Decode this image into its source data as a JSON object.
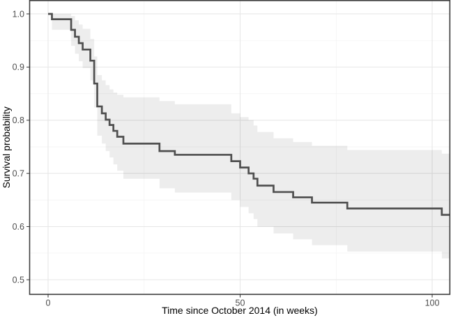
{
  "figure": {
    "background": "#ffffff",
    "colors": {
      "curve": "#4f4f4f",
      "ribbon": "rgba(0,0,0,0.072)",
      "panel_border": "#3f3f3f",
      "grid_major": "#e7e7e7",
      "grid_minor": "#f2f2f2",
      "tick_mark": "#333333",
      "tick_text": "#4d4d4d",
      "title_text": "#000000"
    }
  },
  "chart_data": {
    "type": "line",
    "subtype": "kaplan-meier-step-with-confidence-band",
    "title": "",
    "xlabel": "Time since October 2014 (in weeks)",
    "ylabel": "Survival probability",
    "xlim": [
      -4.81,
      104.59
    ],
    "ylim": [
      0.4725,
      1.0251
    ],
    "x_ticks": [
      0,
      50,
      100
    ],
    "x_tick_labels": [
      "0",
      "50",
      "100"
    ],
    "x_minor_ticks": [
      25,
      75
    ],
    "y_ticks": [
      1.0,
      0.9,
      0.8,
      0.7,
      0.6,
      0.5
    ],
    "y_tick_labels": [
      "1.0",
      "0.9",
      "0.8",
      "0.7",
      "0.6",
      "0.5"
    ],
    "y_minor_ticks": [
      0.95,
      0.85,
      0.75,
      0.65,
      0.55
    ],
    "grid": true,
    "legend": false,
    "series": [
      {
        "name": "survival",
        "end_t": 104.59,
        "steps": [
          {
            "t": 0,
            "s": 1.0,
            "upper": 1.0,
            "lower": 1.0
          },
          {
            "t": 1,
            "s": 0.99,
            "upper": 1.0,
            "lower": 0.97
          },
          {
            "t": 6,
            "s": 0.97,
            "upper": 0.996,
            "lower": 0.94
          },
          {
            "t": 7,
            "s": 0.957,
            "upper": 0.988,
            "lower": 0.925
          },
          {
            "t": 8,
            "s": 0.945,
            "upper": 0.98,
            "lower": 0.911
          },
          {
            "t": 9,
            "s": 0.933,
            "upper": 0.972,
            "lower": 0.898
          },
          {
            "t": 11,
            "s": 0.912,
            "upper": 0.953,
            "lower": 0.875
          },
          {
            "t": 12,
            "s": 0.869,
            "upper": 0.92,
            "lower": 0.824
          },
          {
            "t": 12.8,
            "s": 0.826,
            "upper": 0.885,
            "lower": 0.771
          },
          {
            "t": 14,
            "s": 0.813,
            "upper": 0.875,
            "lower": 0.756
          },
          {
            "t": 15,
            "s": 0.801,
            "upper": 0.866,
            "lower": 0.742
          },
          {
            "t": 16,
            "s": 0.791,
            "upper": 0.858,
            "lower": 0.73
          },
          {
            "t": 17,
            "s": 0.78,
            "upper": 0.852,
            "lower": 0.717
          },
          {
            "t": 18,
            "s": 0.769,
            "upper": 0.848,
            "lower": 0.705
          },
          {
            "t": 19.6,
            "s": 0.756,
            "upper": 0.843,
            "lower": 0.69
          },
          {
            "t": 29,
            "s": 0.742,
            "upper": 0.836,
            "lower": 0.672
          },
          {
            "t": 33,
            "s": 0.735,
            "upper": 0.83,
            "lower": 0.664
          },
          {
            "t": 47.7,
            "s": 0.723,
            "upper": 0.813,
            "lower": 0.65
          },
          {
            "t": 50,
            "s": 0.711,
            "upper": 0.806,
            "lower": 0.637
          },
          {
            "t": 52.2,
            "s": 0.7,
            "upper": 0.8,
            "lower": 0.625
          },
          {
            "t": 53.5,
            "s": 0.69,
            "upper": 0.79,
            "lower": 0.614
          },
          {
            "t": 54.5,
            "s": 0.677,
            "upper": 0.778,
            "lower": 0.6
          },
          {
            "t": 58.7,
            "s": 0.665,
            "upper": 0.766,
            "lower": 0.587
          },
          {
            "t": 63.8,
            "s": 0.655,
            "upper": 0.759,
            "lower": 0.576
          },
          {
            "t": 68.7,
            "s": 0.645,
            "upper": 0.752,
            "lower": 0.565
          },
          {
            "t": 77.9,
            "s": 0.634,
            "upper": 0.744,
            "lower": 0.553
          },
          {
            "t": 102.5,
            "s": 0.622,
            "upper": 0.737,
            "lower": 0.54
          }
        ]
      }
    ]
  }
}
